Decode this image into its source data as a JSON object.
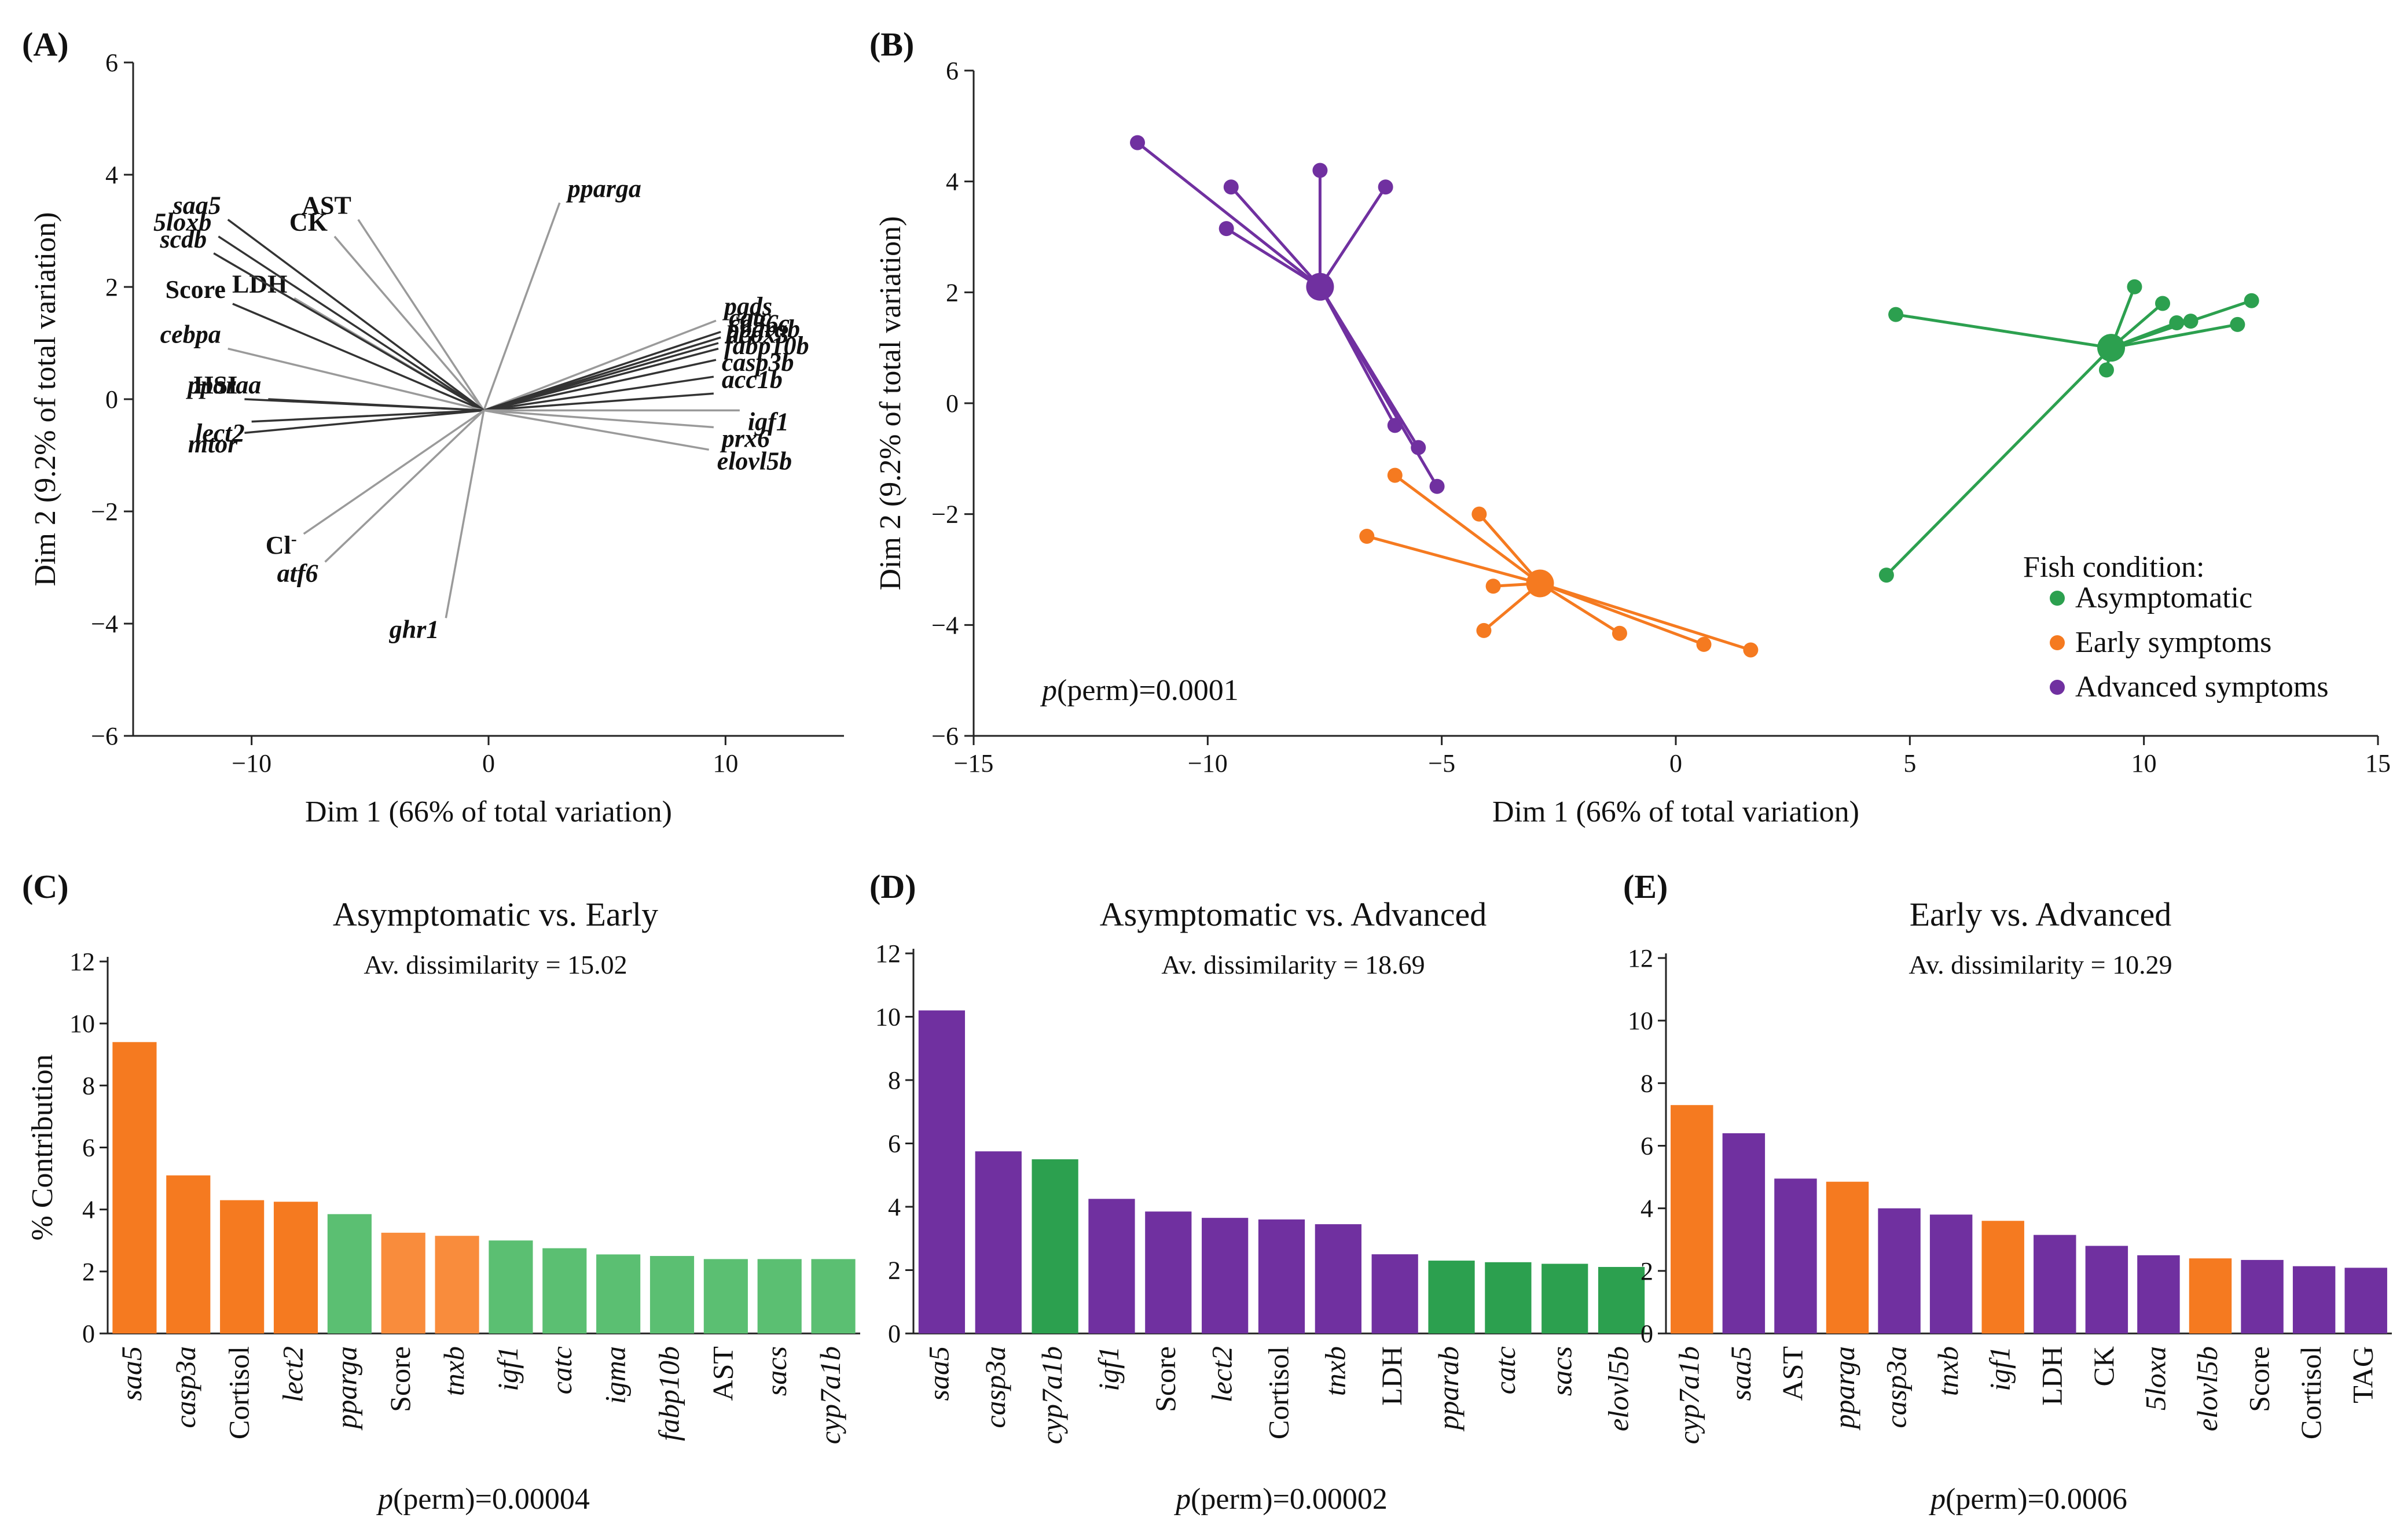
{
  "colors": {
    "asymptomatic": "#2ca04f",
    "asymptomatic_light": "#5bbf72",
    "early": "#f57a20",
    "early_light": "#f98c3c",
    "advanced": "#7030a0",
    "vector_dark": "#333333",
    "vector_light": "#9a9a9a"
  },
  "panels": {
    "A": {
      "label": "(A)"
    },
    "B": {
      "label": "(B)",
      "perm": "p(perm)=0.0001",
      "legend_title": "Fish condition:"
    },
    "C": {
      "label": "(C)"
    },
    "D": {
      "label": "(D)"
    },
    "E": {
      "label": "(E)"
    }
  },
  "chart_data": [
    {
      "id": "A",
      "type": "biplot",
      "xlabel": "Dim 1 (66% of total variation)",
      "ylabel": "Dim 2 (9.2% of total variation)",
      "xlim": [
        -15,
        15
      ],
      "ylim": [
        -6,
        6
      ],
      "xticks": [
        -10,
        0,
        10
      ],
      "yticks": [
        -6,
        -4,
        -2,
        0,
        2,
        4,
        6
      ],
      "vectors": [
        {
          "label": "pparga",
          "x": 3.0,
          "y": 3.5,
          "italic": true,
          "tone": "light"
        },
        {
          "label": "AST",
          "x": -5.5,
          "y": 3.2,
          "italic": false,
          "tone": "light"
        },
        {
          "label": "CK",
          "x": -6.5,
          "y": 2.9,
          "italic": false,
          "tone": "light"
        },
        {
          "label": "LDH",
          "x": -8.2,
          "y": 1.8,
          "italic": false,
          "tone": "light"
        },
        {
          "label": "saa5",
          "x": -11.0,
          "y": 3.2,
          "italic": true,
          "tone": "dark"
        },
        {
          "label": "5loxb",
          "x": -11.4,
          "y": 2.9,
          "italic": true,
          "tone": "dark"
        },
        {
          "label": "scdb",
          "x": -11.6,
          "y": 2.6,
          "italic": true,
          "tone": "dark"
        },
        {
          "label": "Score",
          "x": -10.8,
          "y": 1.7,
          "italic": false,
          "tone": "dark"
        },
        {
          "label": "cebpa",
          "x": -11.0,
          "y": 0.9,
          "italic": true,
          "tone": "light"
        },
        {
          "label": "pparaa",
          "x": -9.3,
          "y": 0.0,
          "italic": true,
          "tone": "dark"
        },
        {
          "label": "HSI",
          "x": -10.3,
          "y": 0.0,
          "italic": false,
          "tone": "dark"
        },
        {
          "label": "lect2",
          "x": -10.0,
          "y": -0.4,
          "italic": true,
          "tone": "dark"
        },
        {
          "label": "mtor",
          "x": -10.3,
          "y": -0.6,
          "italic": true,
          "tone": "dark"
        },
        {
          "label": "Cl-",
          "x": -7.8,
          "y": -2.4,
          "italic": false,
          "tone": "light"
        },
        {
          "label": "atf6",
          "x": -6.9,
          "y": -2.9,
          "italic": true,
          "tone": "light"
        },
        {
          "label": "ghr1",
          "x": -1.8,
          "y": -3.9,
          "italic": true,
          "tone": "light"
        },
        {
          "label": "pgds",
          "x": 9.6,
          "y": 1.4,
          "italic": true,
          "tone": "light"
        },
        {
          "label": "catc",
          "x": 9.8,
          "y": 1.2,
          "italic": true,
          "tone": "dark"
        },
        {
          "label": "cd36c",
          "x": 9.8,
          "y": 1.1,
          "italic": true,
          "tone": "dark"
        },
        {
          "label": "pparab",
          "x": 9.7,
          "y": 1.0,
          "italic": true,
          "tone": "dark"
        },
        {
          "label": "acox3",
          "x": 9.7,
          "y": 0.9,
          "italic": true,
          "tone": "dark"
        },
        {
          "label": "fabp10b",
          "x": 9.6,
          "y": 0.7,
          "italic": true,
          "tone": "dark"
        },
        {
          "label": "casp3b",
          "x": 9.5,
          "y": 0.4,
          "italic": true,
          "tone": "dark"
        },
        {
          "label": "acc1b",
          "x": 9.5,
          "y": 0.1,
          "italic": true,
          "tone": "dark"
        },
        {
          "label": "igf1",
          "x": 10.6,
          "y": -0.2,
          "italic": true,
          "tone": "light"
        },
        {
          "label": "prx6",
          "x": 9.5,
          "y": -0.5,
          "italic": true,
          "tone": "light"
        },
        {
          "label": "elovl5b",
          "x": 9.3,
          "y": -0.9,
          "italic": true,
          "tone": "light"
        }
      ]
    },
    {
      "id": "B",
      "type": "scatter",
      "xlabel": "Dim 1 (66% of total variation)",
      "ylabel": "Dim 2 (9.2% of total variation)",
      "xlim": [
        -15,
        15
      ],
      "ylim": [
        -6,
        6
      ],
      "xticks": [
        -15,
        -10,
        -5,
        0,
        5,
        10,
        15
      ],
      "yticks": [
        -6,
        -4,
        -2,
        0,
        2,
        4,
        6
      ],
      "series": [
        {
          "name": "Asymptomatic",
          "color_key": "asymptomatic",
          "centroid": [
            9.3,
            1.0
          ],
          "points": [
            [
              4.7,
              1.6
            ],
            [
              4.5,
              -3.1
            ],
            [
              9.8,
              2.1
            ],
            [
              10.4,
              1.8
            ],
            [
              10.7,
              1.45
            ],
            [
              11.0,
              1.48
            ],
            [
              12.3,
              1.85
            ],
            [
              12.0,
              1.42
            ],
            [
              9.2,
              0.6
            ]
          ]
        },
        {
          "name": "Early symptoms",
          "color_key": "early",
          "centroid": [
            -2.9,
            -3.25
          ],
          "points": [
            [
              -6.0,
              -1.3
            ],
            [
              -6.6,
              -2.4
            ],
            [
              -4.2,
              -2.0
            ],
            [
              -3.9,
              -3.3
            ],
            [
              -4.1,
              -4.1
            ],
            [
              -1.2,
              -4.15
            ],
            [
              0.6,
              -4.35
            ],
            [
              1.6,
              -4.45
            ]
          ]
        },
        {
          "name": "Advanced symptoms",
          "color_key": "advanced",
          "centroid": [
            -7.6,
            2.1
          ],
          "points": [
            [
              -11.5,
              4.7
            ],
            [
              -9.5,
              3.9
            ],
            [
              -9.6,
              3.15
            ],
            [
              -7.6,
              4.2
            ],
            [
              -6.2,
              3.9
            ],
            [
              -6.0,
              -0.4
            ],
            [
              -5.5,
              -0.8
            ],
            [
              -5.1,
              -1.5
            ]
          ]
        }
      ]
    },
    {
      "id": "C",
      "type": "bar",
      "title": "Asymptomatic vs. Early",
      "subtitle": "Av. dissimilarity = 15.02",
      "ylabel": "% Contribution",
      "perm": "p(perm)=0.00004",
      "ylim": [
        0,
        12
      ],
      "yticks": [
        0,
        2,
        4,
        6,
        8,
        10,
        12
      ],
      "categories": [
        "saa5",
        "casp3a",
        "Cortisol",
        "lect2",
        "pparga",
        "Score",
        "tnxb",
        "igf1",
        "catc",
        "igma",
        "fabp10b",
        "AST",
        "sacs",
        "cyp7a1b"
      ],
      "italic": [
        true,
        true,
        false,
        true,
        true,
        false,
        true,
        true,
        true,
        true,
        true,
        false,
        true,
        true
      ],
      "values": [
        9.4,
        5.1,
        4.3,
        4.25,
        3.85,
        3.25,
        3.15,
        3.0,
        2.75,
        2.55,
        2.5,
        2.4,
        2.4,
        2.4
      ],
      "color_keys": [
        "early",
        "early",
        "early",
        "early",
        "asymptomatic_light",
        "early_light",
        "early_light",
        "asymptomatic_light",
        "asymptomatic_light",
        "asymptomatic_light",
        "asymptomatic_light",
        "asymptomatic_light",
        "asymptomatic_light",
        "asymptomatic_light"
      ]
    },
    {
      "id": "D",
      "type": "bar",
      "title": "Asymptomatic vs. Advanced",
      "subtitle": "Av. dissimilarity = 18.69",
      "ylabel": "",
      "perm": "p(perm)=0.00002",
      "ylim": [
        0,
        12
      ],
      "yticks": [
        0,
        2,
        4,
        6,
        8,
        10,
        12
      ],
      "categories": [
        "saa5",
        "casp3a",
        "cyp7a1b",
        "igf1",
        "Score",
        "lect2",
        "Cortisol",
        "tnxb",
        "LDH",
        "pparab",
        "catc",
        "sacs",
        "elovl5b"
      ],
      "italic": [
        true,
        true,
        true,
        true,
        false,
        true,
        false,
        true,
        false,
        true,
        true,
        true,
        true
      ],
      "values": [
        10.2,
        5.75,
        5.5,
        4.25,
        3.85,
        3.65,
        3.6,
        3.45,
        2.5,
        2.3,
        2.25,
        2.2,
        2.1
      ],
      "color_keys": [
        "advanced",
        "advanced",
        "asymptomatic",
        "advanced",
        "advanced",
        "advanced",
        "advanced",
        "advanced",
        "advanced",
        "asymptomatic",
        "asymptomatic",
        "asymptomatic",
        "asymptomatic"
      ]
    },
    {
      "id": "E",
      "type": "bar",
      "title": "Early vs. Advanced",
      "subtitle": "Av. dissimilarity = 10.29",
      "ylabel": "",
      "perm": "p(perm)=0.0006",
      "ylim": [
        0,
        12
      ],
      "yticks": [
        0,
        2,
        4,
        6,
        8,
        10,
        12
      ],
      "categories": [
        "cyp7a1b",
        "saa5",
        "AST",
        "pparga",
        "casp3a",
        "tnxb",
        "igf1",
        "LDH",
        "CK",
        "5loxa",
        "elovl5b",
        "Score",
        "Cortisol",
        "TAG"
      ],
      "italic": [
        true,
        true,
        false,
        true,
        true,
        true,
        true,
        false,
        false,
        true,
        true,
        false,
        false,
        false
      ],
      "values": [
        7.3,
        6.4,
        4.95,
        4.85,
        4.0,
        3.8,
        3.6,
        3.15,
        2.8,
        2.5,
        2.4,
        2.35,
        2.15,
        2.1
      ],
      "color_keys": [
        "early",
        "advanced",
        "advanced",
        "early",
        "advanced",
        "advanced",
        "early",
        "advanced",
        "advanced",
        "advanced",
        "early",
        "advanced",
        "advanced",
        "advanced"
      ]
    }
  ]
}
